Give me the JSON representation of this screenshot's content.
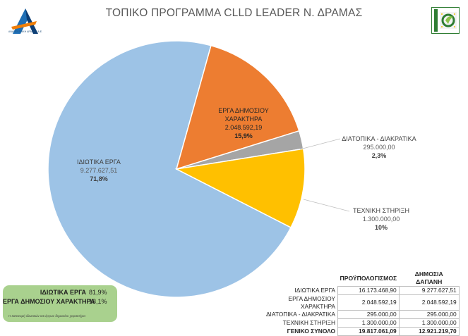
{
  "header": {
    "title": "ΤΟΠΙΚΟ ΠΡΟΓΡΑΜΜΑ CLLD LEADER Ν. ΔΡΑΜΑΣ",
    "left_logo_text": "ΑΝΑΠΤΥΞΙΑΚΗ ΔΡΑΜΑΣ Α.Ε.",
    "right_logo_icon": "leader-eu-logo-icon",
    "left_logo_icon": "anaptyxiaki-dramas-logo-icon"
  },
  "chart_data": {
    "type": "pie",
    "slices": [
      {
        "name": "ΙΔΙΩΤΙΚΑ ΕΡΓΑ",
        "value": 9277627.51,
        "value_label": "9.277.627,51",
        "percent_label": "71,8%",
        "color": "#9dc3e6"
      },
      {
        "name": "ΕΡΓΑ ΔΗΜΟΣΙΟΥ ΧΑΡΑΚΤΗΡΑ",
        "value": 2048592.19,
        "value_label": "2.048.592,19",
        "percent_label": "15,9%",
        "color": "#ed7d31"
      },
      {
        "name": "ΔΙΑΤΟΠΙΚΑ - ΔΙΑΚΡΑΤΙΚΑ",
        "value": 295000.0,
        "value_label": "295.000,00",
        "percent_label": "2,3%",
        "color": "#a5a5a5"
      },
      {
        "name": "ΤΕΧΝΙΚΗ ΣΤΗΡΙΞΗ",
        "value": 1300000.0,
        "value_label": "1.300.000,00",
        "percent_label": "10%",
        "color": "#ffc000"
      }
    ]
  },
  "labels": {
    "private": {
      "name": "ΙΔΙΩΤΙΚΑ ΕΡΓΑ",
      "value": "9.277.627,51",
      "pct": "71,8%"
    },
    "public": {
      "name_line1": "ΕΡΓΑ ΔΗΜΟΣΙΟΥ",
      "name_line2": "ΧΑΡΑΚΤΗΡΑ",
      "value": "2.048.592,19",
      "pct": "15,9%"
    },
    "transnational": {
      "name": "ΔΙΑΤΟΠΙΚΑ - ΔΙΑΚΡΑΤΙΚΑ",
      "value": "295.000,00",
      "pct": "2,3%"
    },
    "technical": {
      "name": "ΤΕΧΝΙΚΗ ΣΤΗΡΙΞΗ",
      "value": "1.300.000,00",
      "pct": "10%"
    }
  },
  "budget_table": {
    "headers": [
      "ΠΡΟΫΠΟΛΟΓΙΣΜΟΣ",
      "ΔΗΜΟΣΙΑ ΔΑΠΑΝΗ"
    ],
    "rows": [
      {
        "label": "ΙΔΙΩΤΙΚΑ ΕΡΓΑ",
        "budget": "16.173.468,90",
        "public": "9.277.627,51"
      },
      {
        "label": "ΕΡΓΑ ΔΗΜΟΣΙΟΥ ΧΑΡΑΚΤΗΡΑ",
        "budget": "2.048.592,19",
        "public": "2.048.592,19"
      },
      {
        "label": "ΔΙΑΤΟΠΙΚΑ - ΔΙΑΚΡΑΤΙΚΑ",
        "budget": "295.000,00",
        "public": "295.000,00"
      },
      {
        "label": "ΤΕΧΝΙΚΗ ΣΤΗΡΙΞΗ",
        "budget": "1.300.000,00",
        "public": "1.300.000,00"
      }
    ],
    "total": {
      "label": "ΓΕΝΙΚΟ ΣΥΝΟΛΟ",
      "budget": "19.817.061,09",
      "public": "12.921.219,70"
    }
  },
  "summary_box": {
    "rows": [
      {
        "label": "ΙΔΙΩΤΙΚΑ ΕΡΓΑ",
        "value": "81,9%"
      },
      {
        "label": "ΕΡΓΑ ΔΗΜΟΣΙΟΥ ΧΑΡΑΚΤΗΡΑ",
        "value": "18,1%"
      }
    ],
    "note": "Η κατανομή ιδιωτικών και έργων δημοσίου χαρακτήρα",
    "color": "#a9d18e"
  }
}
